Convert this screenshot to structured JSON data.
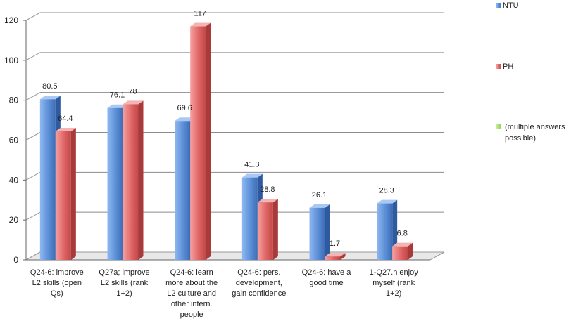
{
  "chart_data": {
    "type": "bar",
    "categories": [
      [
        "Q24-6: improve",
        "L2 skills (open",
        "Qs)"
      ],
      [
        "Q27a; improve",
        "L2 skills (rank",
        "1+2)"
      ],
      [
        "Q24-6: learn",
        "more about the",
        "L2 culture and",
        "other intern.",
        "people"
      ],
      [
        "Q24-6: pers.",
        "development,",
        "gain confidence"
      ],
      [
        "Q24-6: have a",
        "good time"
      ],
      [
        "1-Q27.h enjoy",
        "myself (rank",
        "1+2)"
      ]
    ],
    "series": [
      {
        "name": "NTU",
        "color": "#5b8fd6",
        "values": [
          80.5,
          76.1,
          69.6,
          41.3,
          26.1,
          28.3
        ]
      },
      {
        "name": "PH",
        "color": "#e06666",
        "values": [
          64.4,
          78,
          117,
          28.8,
          1.7,
          6.8
        ]
      }
    ],
    "legend": [
      {
        "label": "NTU",
        "color": "#5b8fd6"
      },
      {
        "label": "PH",
        "color": "#e06666"
      },
      {
        "label": "(multiple answers possible)",
        "color": "#9fd86a"
      }
    ],
    "y_ticks": [
      0,
      20,
      40,
      60,
      80,
      100,
      120
    ],
    "ylim": [
      0,
      120
    ],
    "grid": true,
    "legend_position": "right",
    "title": "",
    "xlabel": "",
    "ylabel": ""
  }
}
